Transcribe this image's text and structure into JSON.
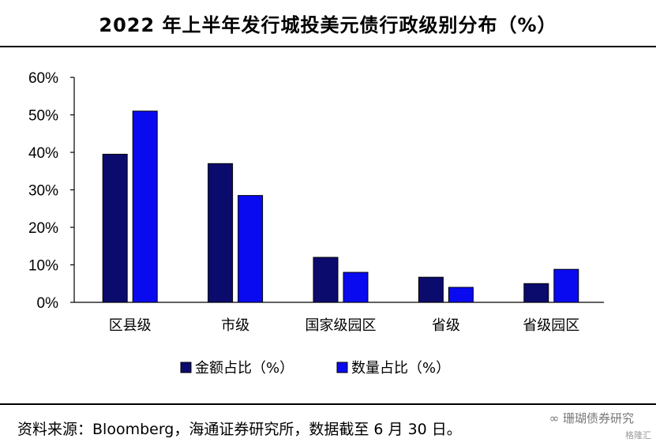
{
  "title": "2022 年上半年发行城投美元债行政级别分布（%）",
  "source": "资料来源：Bloomberg，海通证券研究所，数据截至 6 月 30 日。",
  "watermark": "∞ 珊瑚债券研究",
  "watermark2": "格隆汇",
  "colors": {
    "series1": "#0b0b6e",
    "series2": "#0a0af0"
  },
  "chart_data": {
    "type": "bar",
    "categories": [
      "区县级",
      "市级",
      "国家级园区",
      "省级",
      "省级园区"
    ],
    "series": [
      {
        "name": "金额占比（%）",
        "values": [
          39.5,
          37,
          12,
          6.7,
          5
        ]
      },
      {
        "name": "数量占比（%）",
        "values": [
          51,
          28.5,
          8,
          4,
          8.8
        ]
      }
    ],
    "yticks": [
      "0%",
      "10%",
      "20%",
      "30%",
      "40%",
      "50%",
      "60%"
    ],
    "ylim": [
      0,
      60
    ],
    "grid": false,
    "legend_position": "bottom"
  }
}
